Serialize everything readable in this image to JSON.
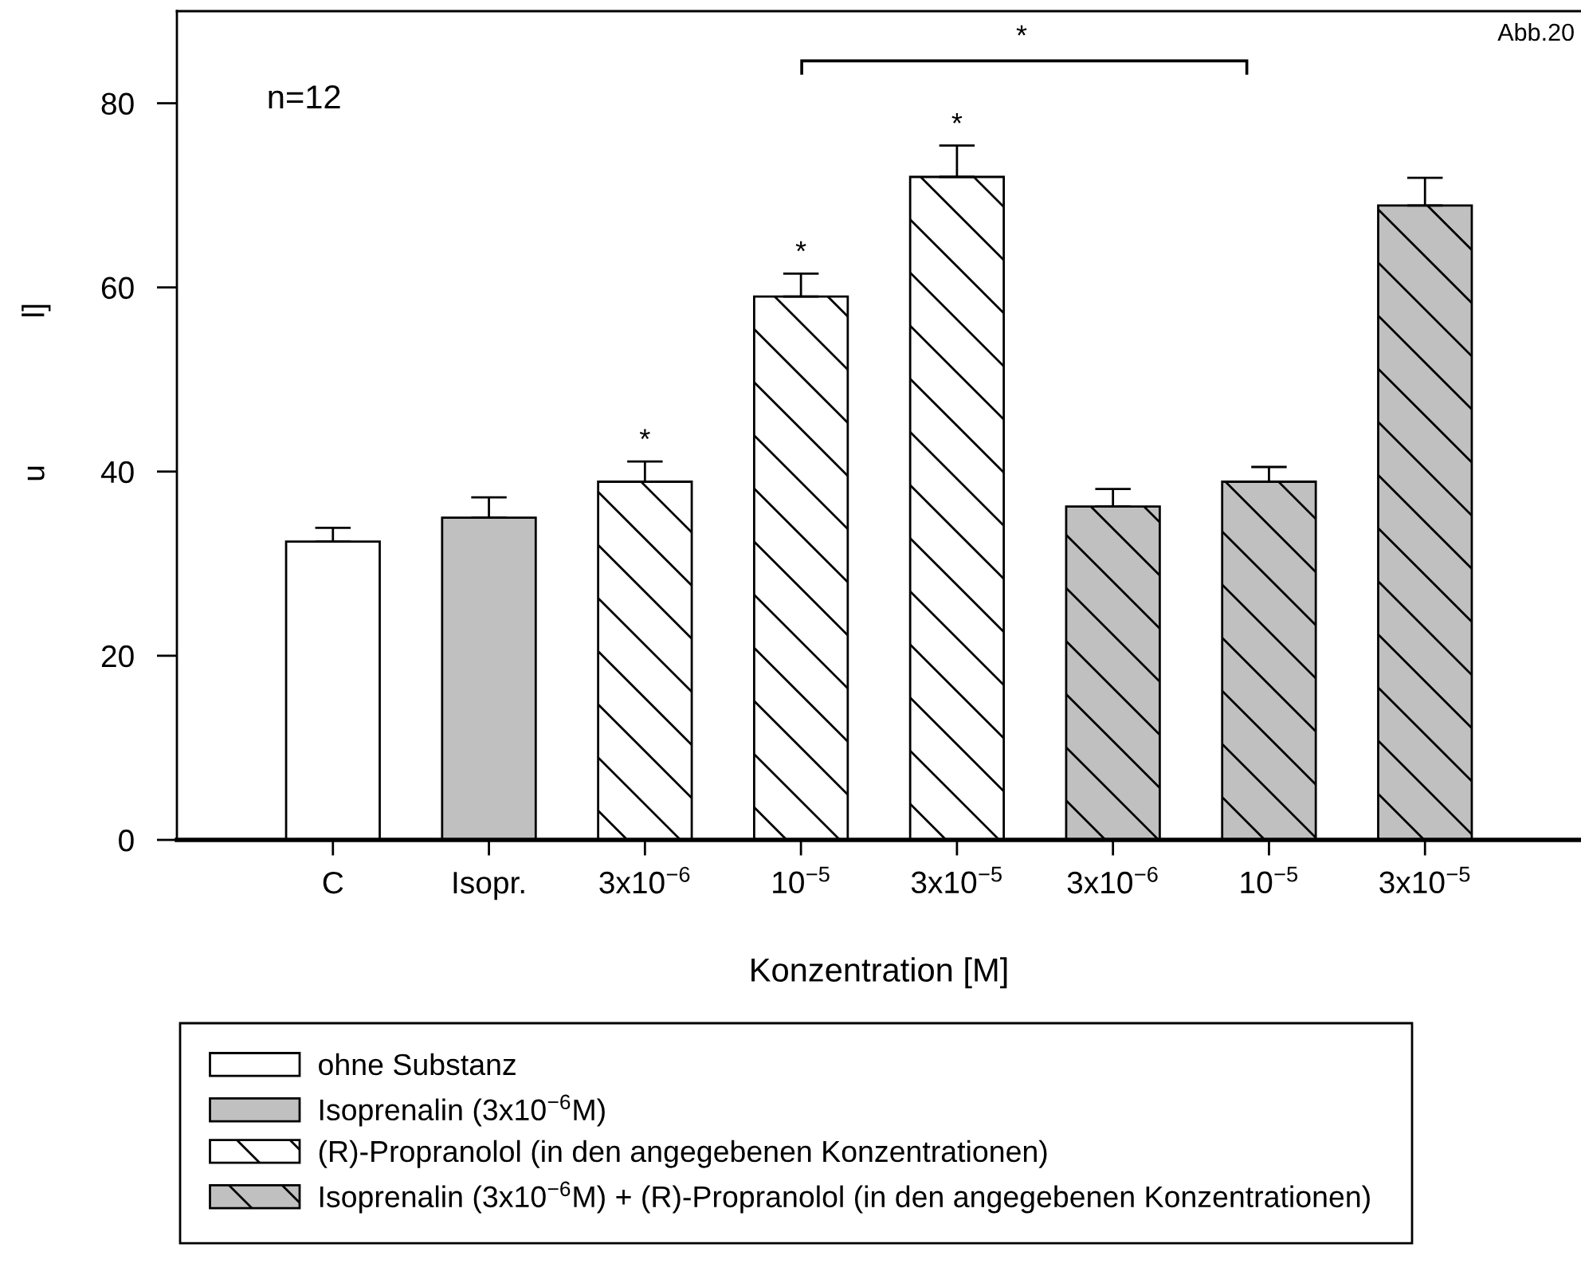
{
  "chart_data": {
    "type": "bar",
    "xlabel": "Konzentration [M]",
    "ylabel": "u                 l]",
    "categories": [
      "C",
      "Isopr.",
      "3x10$^{−6}$",
      "10$^{−5}$",
      "3x10$^{−5}$",
      "3x10$^{−6}$",
      "10$^{−5}$",
      "3x10$^{−5}$"
    ],
    "series": [
      {
        "name": "ohne Substanz",
        "color": "#ffffff",
        "values": [
          32.4,
          null,
          null,
          null,
          null,
          null,
          null,
          null
        ],
        "errors": [
          [
            32.4,
            33.9
          ],
          null,
          null,
          null,
          null,
          null,
          null,
          null
        ]
      },
      {
        "name": "Isoprenalin (3x10$^{−6}$M)",
        "color": "#c0c0c0",
        "values": [
          null,
          35.0,
          null,
          null,
          null,
          null,
          null,
          null
        ],
        "errors": [
          null,
          [
            35.0,
            37.2
          ],
          null,
          null,
          null,
          null,
          null,
          null
        ]
      },
      {
        "name": "(R)-Propranolol (in den angegebenen Konzentrationen)",
        "color": "#ffffff",
        "values": [
          null,
          null,
          38.9,
          59.0,
          72.0,
          null,
          null,
          null
        ],
        "errors": [
          null,
          null,
          [
            38.9,
            41.1
          ],
          [
            59.0,
            61.5
          ],
          [
            72.0,
            75.4
          ],
          null,
          null,
          null
        ],
        "value_labels": [
          null,
          null,
          "*",
          "*",
          "*",
          null,
          null,
          null
        ]
      },
      {
        "name": "Isoprenalin (3x10$^{−6}$M) + (R)-Propranolol (in den angegebenen Konzentrationen)",
        "color": "#c0c0c0",
        "values": [
          null,
          null,
          null,
          null,
          null,
          36.2,
          38.9,
          68.9
        ],
        "errors": [
          null,
          null,
          null,
          null,
          null,
          [
            36.2,
            38.1
          ],
          [
            38.9,
            40.5
          ],
          [
            68.9,
            71.9
          ]
        ]
      }
    ],
    "ylim": [
      0,
      90
    ],
    "yticks": [
      0,
      20,
      40,
      60,
      80
    ],
    "legend": "bottom",
    "annotations": [
      "Abb.20",
      "*",
      "n=12"
    ]
  }
}
